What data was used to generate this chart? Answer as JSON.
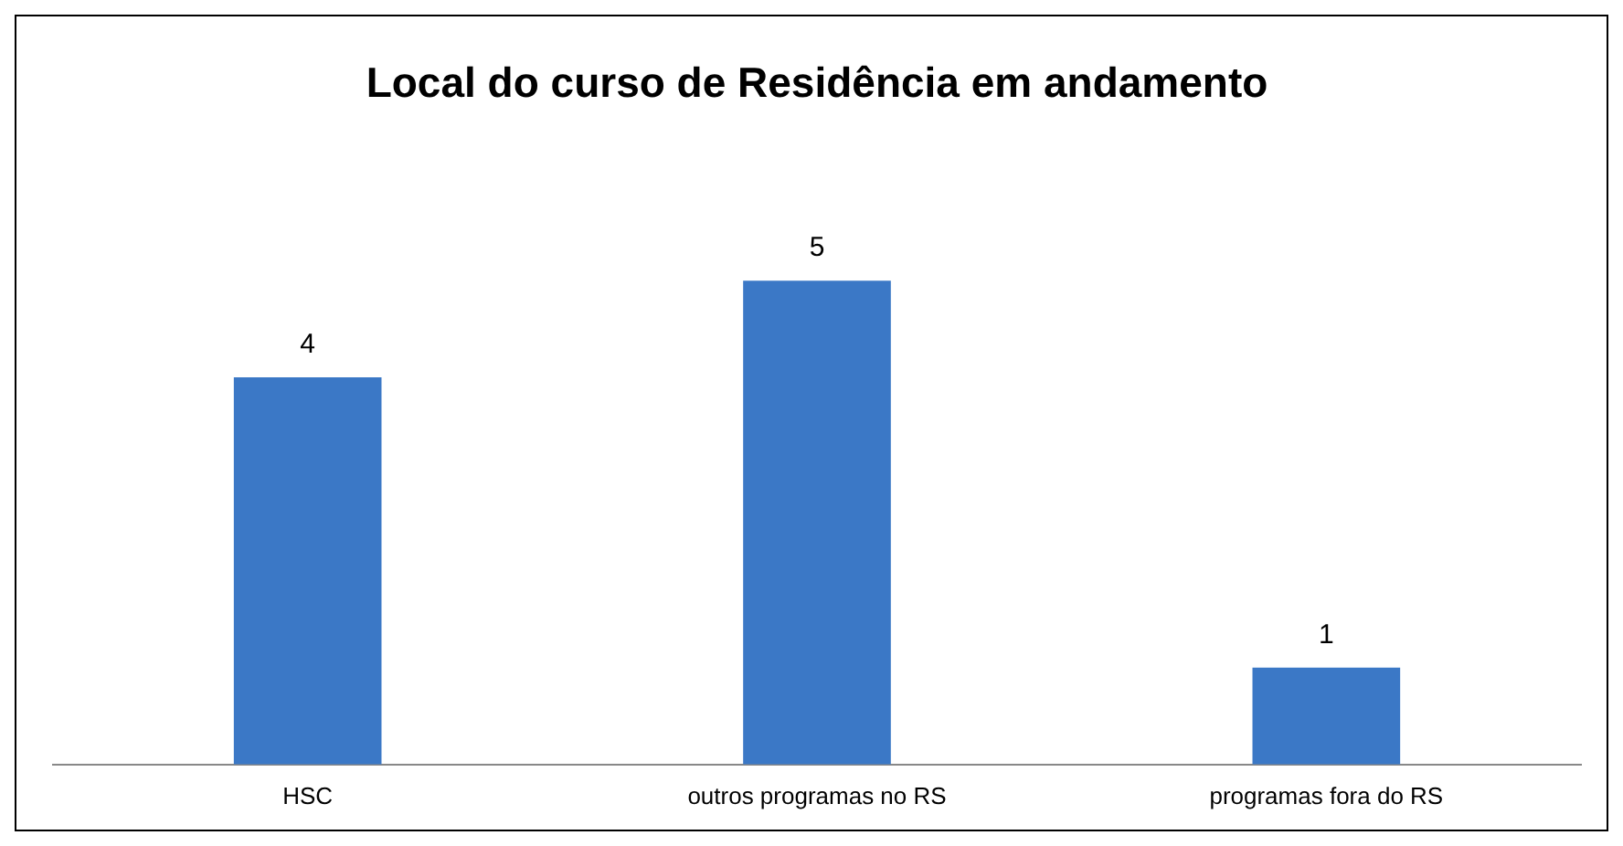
{
  "chart_data": {
    "type": "bar",
    "title": "Local do curso de Residência em andamento",
    "categories": [
      "HSC",
      "outros programas no RS",
      "programas fora do RS"
    ],
    "values": [
      4,
      5,
      1
    ],
    "color": "#3b78c6",
    "data_labels": true,
    "legend": false
  }
}
